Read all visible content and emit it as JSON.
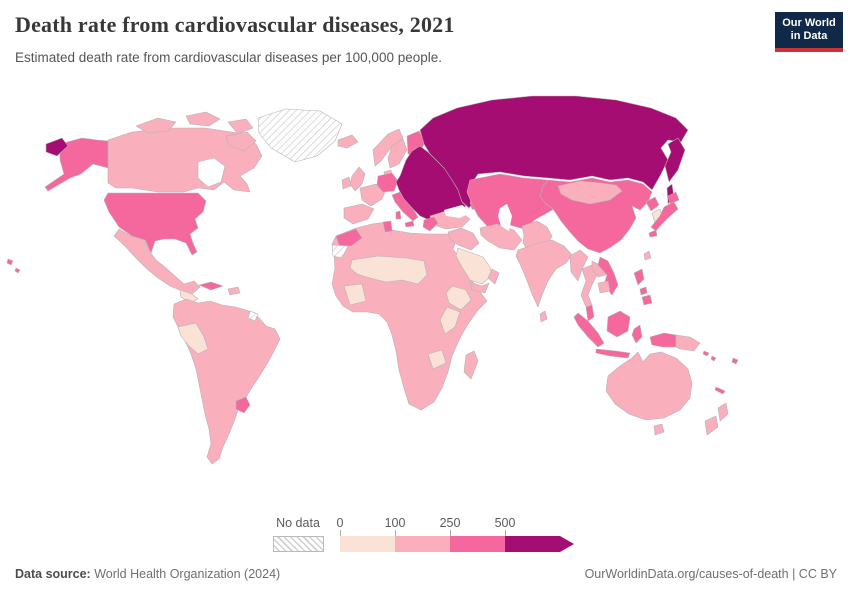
{
  "header": {
    "title": "Death rate from cardiovascular diseases, 2021",
    "subtitle": "Estimated death rate from cardiovascular diseases per 100,000 people.",
    "logo": {
      "line1": "Our World",
      "line2": "in Data",
      "bg_color": "#102948",
      "accent_color": "#cf3235"
    }
  },
  "footer": {
    "source_label": "Data source:",
    "source_text": " World Health Organization (2024)",
    "right_text": "OurWorldinData.org/causes-of-death | CC BY"
  },
  "chart_data": {
    "type": "choropleth_map",
    "title": "Death rate from cardiovascular diseases, 2021",
    "unit": "deaths per 100,000 people",
    "year": "2021",
    "no_data_label": "No data",
    "tick_labels": [
      "0",
      "100",
      "250",
      "500"
    ],
    "legend_bins": [
      {
        "range": "0-100",
        "color": "#fbe2d7"
      },
      {
        "range": "100-250",
        "color": "#f9afbc"
      },
      {
        "range": "250-500",
        "color": "#f4689d"
      },
      {
        "range": "500+",
        "color": "#a50d73"
      }
    ],
    "border_color": "#b5b5b5",
    "regions": [
      {
        "name": "canada",
        "bin": 2
      },
      {
        "name": "greenland",
        "bin": 0
      },
      {
        "name": "united-states",
        "bin": 3
      },
      {
        "name": "mexico",
        "bin": 2
      },
      {
        "name": "guatemala-honduras",
        "bin": 1
      },
      {
        "name": "central-america",
        "bin": 2
      },
      {
        "name": "cuba",
        "bin": 3
      },
      {
        "name": "hispaniola",
        "bin": 2
      },
      {
        "name": "south-america",
        "bin": 2
      },
      {
        "name": "peru",
        "bin": 1
      },
      {
        "name": "uruguay",
        "bin": 3
      },
      {
        "name": "french-guiana",
        "bin": 0
      },
      {
        "name": "africa-mainland",
        "bin": 2
      },
      {
        "name": "morocco",
        "bin": 3
      },
      {
        "name": "tunisia",
        "bin": 3
      },
      {
        "name": "western-sahara",
        "bin": 0
      },
      {
        "name": "sahel-belt",
        "bin": 1
      },
      {
        "name": "guinea-region",
        "bin": 1
      },
      {
        "name": "ethiopia-east-africa",
        "bin": 1
      },
      {
        "name": "zambia",
        "bin": 1
      },
      {
        "name": "madagascar",
        "bin": 2
      },
      {
        "name": "iceland",
        "bin": 2
      },
      {
        "name": "norway",
        "bin": 2
      },
      {
        "name": "sweden",
        "bin": 2
      },
      {
        "name": "finland",
        "bin": 3
      },
      {
        "name": "denmark",
        "bin": 2
      },
      {
        "name": "united-kingdom",
        "bin": 2
      },
      {
        "name": "ireland",
        "bin": 2
      },
      {
        "name": "france",
        "bin": 2
      },
      {
        "name": "iberia",
        "bin": 2
      },
      {
        "name": "germany-central-europe",
        "bin": 3
      },
      {
        "name": "italy",
        "bin": 3
      },
      {
        "name": "russia",
        "bin": 4
      },
      {
        "name": "eastern-europe",
        "bin": 4
      },
      {
        "name": "turkey",
        "bin": 2
      },
      {
        "name": "greece",
        "bin": 3
      },
      {
        "name": "caucasus",
        "bin": 3
      },
      {
        "name": "kazakhstan-central-asia",
        "bin": 3
      },
      {
        "name": "levant-iraq",
        "bin": 2
      },
      {
        "name": "saudi-arabia",
        "bin": 1
      },
      {
        "name": "yemen",
        "bin": 2
      },
      {
        "name": "oman",
        "bin": 2
      },
      {
        "name": "iran",
        "bin": 2
      },
      {
        "name": "afghanistan-pakistan",
        "bin": 2
      },
      {
        "name": "india",
        "bin": 2
      },
      {
        "name": "sri-lanka",
        "bin": 2
      },
      {
        "name": "china",
        "bin": 3
      },
      {
        "name": "mongolia",
        "bin": 2
      },
      {
        "name": "north-korea",
        "bin": 3
      },
      {
        "name": "south-korea",
        "bin": 1
      },
      {
        "name": "japan",
        "bin": 3
      },
      {
        "name": "taiwan",
        "bin": 2
      },
      {
        "name": "myanmar",
        "bin": 2
      },
      {
        "name": "thailand",
        "bin": 2
      },
      {
        "name": "laos",
        "bin": 2
      },
      {
        "name": "vietnam",
        "bin": 3
      },
      {
        "name": "cambodia",
        "bin": 2
      },
      {
        "name": "malaysia",
        "bin": 3
      },
      {
        "name": "sumatra",
        "bin": 3
      },
      {
        "name": "borneo",
        "bin": 3
      },
      {
        "name": "java",
        "bin": 3
      },
      {
        "name": "sulawesi",
        "bin": 3
      },
      {
        "name": "philippines",
        "bin": 3
      },
      {
        "name": "new-guinea-west",
        "bin": 3
      },
      {
        "name": "papua-new-guinea",
        "bin": 2
      },
      {
        "name": "solomon-islands",
        "bin": 3
      },
      {
        "name": "fiji",
        "bin": 3
      },
      {
        "name": "new-caledonia",
        "bin": 3
      },
      {
        "name": "australia",
        "bin": 2
      },
      {
        "name": "tasmania",
        "bin": 2
      },
      {
        "name": "new-zealand",
        "bin": 2
      },
      {
        "name": "caspian-sea",
        "bin": "w"
      },
      {
        "name": "black-sea",
        "bin": "w"
      }
    ]
  }
}
